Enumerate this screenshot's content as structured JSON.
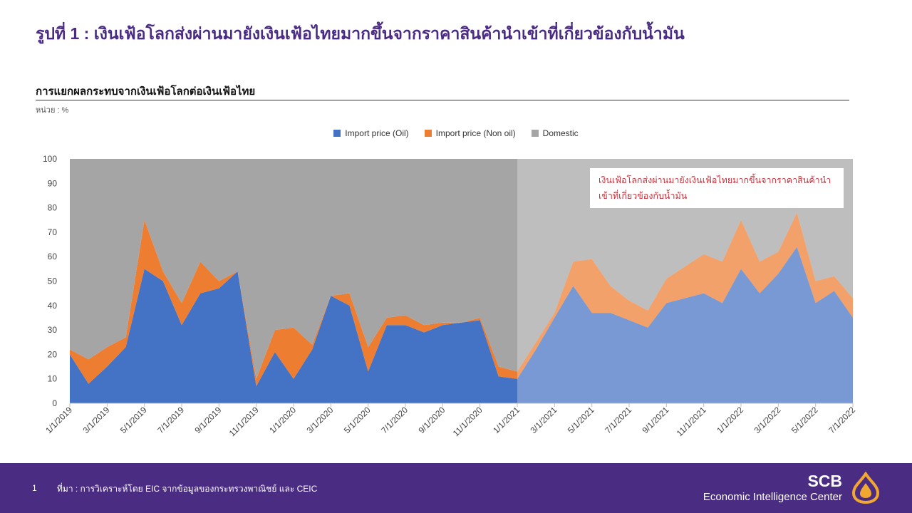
{
  "slide_title": "รูปที่ 1 : เงินเฟ้อโลกส่งผ่านมายังเงินเฟ้อไทยมากขึ้นจากราคาสินค้านำเข้าที่เกี่ยวข้องกับน้ำมัน",
  "colors": {
    "oil": "#4472c4",
    "non_oil": "#ed7d31",
    "domestic": "#a5a5a5",
    "brand": "#4b2c83",
    "annotation_text": "#c8323c"
  },
  "chart_data": {
    "type": "area",
    "stacked": true,
    "title": "การแยกผลกระทบจากเงินเฟ้อโลกต่อเงินเฟ้อไทย",
    "unit_label": "หน่วย : %",
    "ylim": [
      0,
      100
    ],
    "yticks": [
      0,
      10,
      20,
      30,
      40,
      50,
      60,
      70,
      80,
      90,
      100
    ],
    "x": [
      "1/1/2019",
      "2/1/2019",
      "3/1/2019",
      "4/1/2019",
      "5/1/2019",
      "6/1/2019",
      "7/1/2019",
      "8/1/2019",
      "9/1/2019",
      "10/1/2019",
      "11/1/2019",
      "12/1/2019",
      "1/1/2020",
      "2/1/2020",
      "3/1/2020",
      "4/1/2020",
      "5/1/2020",
      "6/1/2020",
      "7/1/2020",
      "8/1/2020",
      "9/1/2020",
      "10/1/2020",
      "11/1/2020",
      "12/1/2020",
      "1/1/2021",
      "2/1/2021",
      "3/1/2021",
      "4/1/2021",
      "5/1/2021",
      "6/1/2021",
      "7/1/2021",
      "8/1/2021",
      "9/1/2021",
      "10/1/2021",
      "11/1/2021",
      "12/1/2021",
      "1/1/2022",
      "2/1/2022",
      "3/1/2022",
      "4/1/2022",
      "5/1/2022",
      "6/1/2022",
      "7/1/2022"
    ],
    "xtick_labels": [
      "1/1/2019",
      "3/1/2019",
      "5/1/2019",
      "7/1/2019",
      "9/1/2019",
      "11/1/2019",
      "1/1/2020",
      "3/1/2020",
      "5/1/2020",
      "7/1/2020",
      "9/1/2020",
      "11/1/2020",
      "1/1/2021",
      "3/1/2021",
      "5/1/2021",
      "7/1/2021",
      "9/1/2021",
      "11/1/2021",
      "1/1/2022",
      "3/1/2022",
      "5/1/2022",
      "7/1/2022"
    ],
    "series": [
      {
        "name": "Import price (Oil)",
        "color": "#4472c4",
        "values": [
          20,
          8,
          15,
          23,
          55,
          50,
          32,
          45,
          47,
          54,
          7,
          21,
          10,
          22,
          44,
          40,
          13,
          32,
          32,
          29,
          32,
          33,
          34,
          11,
          10,
          22,
          35,
          48,
          37,
          37,
          34,
          31,
          41,
          43,
          45,
          41,
          55,
          45,
          53,
          64,
          41,
          46,
          35
        ]
      },
      {
        "name": "Import price (Non oil)",
        "color": "#ed7d31",
        "values": [
          2,
          10,
          8,
          4,
          20,
          4,
          9,
          13,
          3,
          0,
          3,
          9,
          21,
          2,
          0,
          5,
          10,
          3,
          4,
          3,
          1,
          0,
          1,
          4,
          3,
          3,
          2,
          10,
          22,
          11,
          8,
          7,
          10,
          13,
          16,
          17,
          20,
          13,
          9,
          14,
          9,
          6,
          8
        ]
      },
      {
        "name": "Domestic",
        "color": "#a5a5a5",
        "values": [
          78,
          82,
          77,
          73,
          25,
          46,
          59,
          42,
          50,
          46,
          90,
          70,
          69,
          76,
          56,
          55,
          77,
          65,
          64,
          68,
          67,
          67,
          65,
          85,
          87,
          75,
          63,
          42,
          41,
          52,
          58,
          62,
          49,
          44,
          39,
          42,
          25,
          42,
          38,
          22,
          50,
          48,
          57
        ]
      }
    ],
    "highlight_start": "1/1/2021",
    "annotation": "เงินเฟ้อโลกส่งผ่านมายังเงินเฟ้อไทยมากขึ้นจากราคาสินค้านำเข้าที่เกี่ยวข้องกับน้ำมัน",
    "legend_position": "top-center"
  },
  "footer": {
    "page_number": "1",
    "source": "ที่มา : การวิเคราะห์โดย EIC จากข้อมูลของกระทรวงพาณิชย์ และ CEIC",
    "brand_name": "SCB",
    "brand_sub": "Economic Intelligence Center",
    "logo_icon": "scb-lotus-logo-icon"
  }
}
